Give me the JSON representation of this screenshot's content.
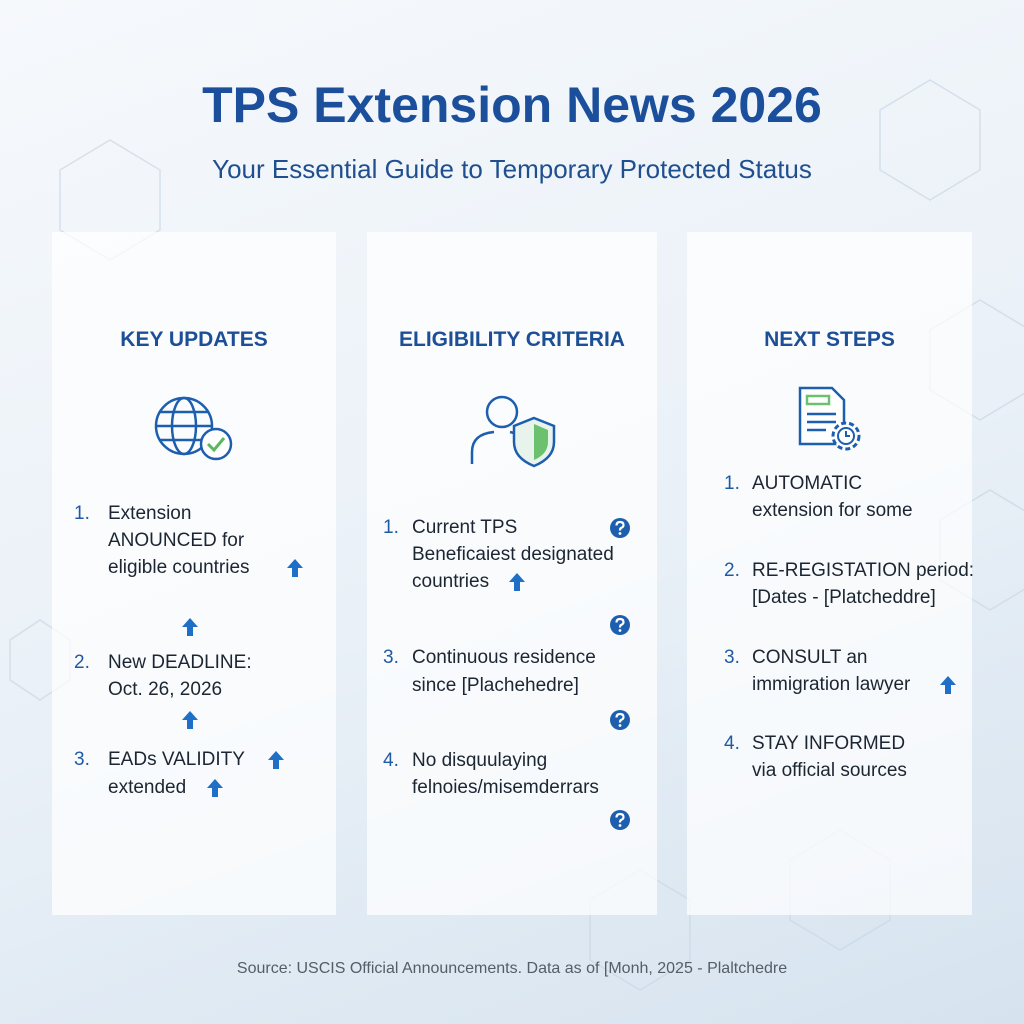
{
  "header": {
    "title": "TPS Extension News 2026",
    "subtitle": "Your Essential Guide to Temporary Protected Status"
  },
  "cards": [
    {
      "heading": "KEY UPDATES",
      "items": [
        {
          "number": "1.",
          "lines": [
            "Extension",
            "ANOUNCED for",
            "eligible countries"
          ]
        },
        {
          "number": "2.",
          "lines": [
            "New DEADLINE:",
            "Oct. 26, 2026"
          ]
        },
        {
          "number": "3.",
          "lines": [
            "EADs VALIDITY",
            "extended"
          ]
        }
      ]
    },
    {
      "heading": "ELIGIBILITY CRITERIA",
      "items": [
        {
          "number": "1.",
          "lines": [
            "Current TPS",
            "Beneficaiest designated",
            "countries"
          ]
        },
        {
          "number": "3.",
          "lines": [
            "Continuous residence",
            "since [Plachehedre]"
          ]
        },
        {
          "number": "4.",
          "lines": [
            "No disquulaying",
            "felnoies/misemderrars"
          ]
        }
      ]
    },
    {
      "heading": "NEXT STEPS",
      "items": [
        {
          "number": "1.",
          "lines": [
            "AUTOMATIC",
            "extension for some"
          ]
        },
        {
          "number": "2.",
          "lines": [
            "RE-REGISTATION period:",
            "[Dates - [Platcheddre]"
          ]
        },
        {
          "number": "3.",
          "lines": [
            "CONSULT an",
            "immigration lawyer"
          ]
        },
        {
          "number": "4.",
          "lines": [
            "STAY INFORMED",
            "via official sources"
          ]
        }
      ]
    }
  ],
  "footer": {
    "source": "Source: USCIS Official Announcements. Data as of [Monh, 2025 - Plaltchedre"
  }
}
